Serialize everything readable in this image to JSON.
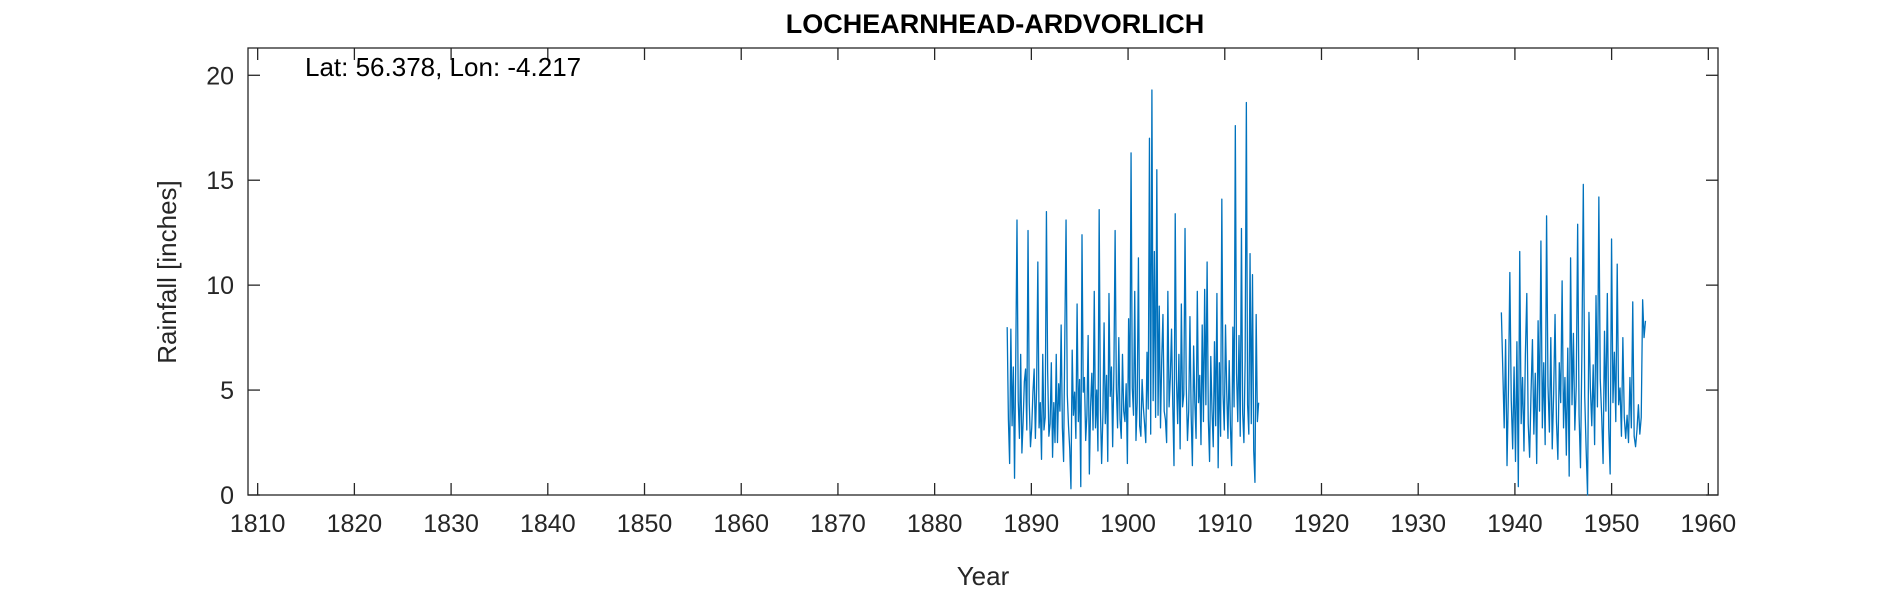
{
  "chart_data": {
    "type": "line",
    "title": "LOCHEARNHEAD-ARDVORLICH",
    "xlabel": "Year",
    "ylabel": "Rainfall [inches]",
    "annotation": "Lat: 56.378, Lon: -4.217",
    "xlim": [
      1809,
      1961
    ],
    "ylim": [
      0,
      21.3
    ],
    "xticks": [
      1810,
      1820,
      1830,
      1840,
      1850,
      1860,
      1870,
      1880,
      1890,
      1900,
      1910,
      1920,
      1930,
      1940,
      1950,
      1960
    ],
    "yticks": [
      0,
      5,
      10,
      15,
      20
    ],
    "grid": false,
    "series_color": "#0072bd",
    "segments": [
      {
        "x_start": 1887.5,
        "x_end": 1913.5,
        "values": [
          8.0,
          3.6,
          1.5,
          7.9,
          3.3,
          6.1,
          0.8,
          6.5,
          13.1,
          4.5,
          2.7,
          6.7,
          2.0,
          3.5,
          5.4,
          6.0,
          3.1,
          12.6,
          4.4,
          2.3,
          3.2,
          4.9,
          6.0,
          2.7,
          5.1,
          11.1,
          3.2,
          4.4,
          1.7,
          6.7,
          3.1,
          3.7,
          13.5,
          5.9,
          2.8,
          3.4,
          6.3,
          1.8,
          4.4,
          2.5,
          6.7,
          2.5,
          5.3,
          4.0,
          8.1,
          3.2,
          1.6,
          7.6,
          13.1,
          4.8,
          3.3,
          2.2,
          0.3,
          6.9,
          3.8,
          4.9,
          2.7,
          9.1,
          3.5,
          5.5,
          0.4,
          12.4,
          4.9,
          5.6,
          2.6,
          3.8,
          7.6,
          1.0,
          4.2,
          5.8,
          3.1,
          9.7,
          3.2,
          5.0,
          2.1,
          13.6,
          4.1,
          1.5,
          3.7,
          8.2,
          3.4,
          5.7,
          1.6,
          9.6,
          4.7,
          6.1,
          2.3,
          5.9,
          12.6,
          5.1,
          3.2,
          7.5,
          3.6,
          2.7,
          6.7,
          4.0,
          3.5,
          5.3,
          1.5,
          8.4,
          4.2,
          16.3,
          5.1,
          3.8,
          9.7,
          2.6,
          4.4,
          11.3,
          3.3,
          2.8,
          5.5,
          4.2,
          3.4,
          2.5,
          6.8,
          4.1,
          17.0,
          2.9,
          19.3,
          4.5,
          11.6,
          3.7,
          15.5,
          3.8,
          9.0,
          3.2,
          6.5,
          8.6,
          4.0,
          3.6,
          2.5,
          9.7,
          4.2,
          5.6,
          7.9,
          4.3,
          1.4,
          13.4,
          5.5,
          3.4,
          6.7,
          2.2,
          9.1,
          4.2,
          4.8,
          12.7,
          5.2,
          2.6,
          4.0,
          8.5,
          3.8,
          1.4,
          7.1,
          4.4,
          2.7,
          9.7,
          4.4,
          5.7,
          2.4,
          8.1,
          3.5,
          9.8,
          4.3,
          11.1,
          3.6,
          1.6,
          6.6,
          4.0,
          2.3,
          7.3,
          3.3,
          9.6,
          1.3,
          6.3,
          2.8,
          14.1,
          4.8,
          3.1,
          8.1,
          4.9,
          2.7,
          6.4,
          3.3,
          1.4,
          8.0,
          4.2,
          17.6,
          5.8,
          3.5,
          7.6,
          2.8,
          12.7,
          3.9,
          2.5,
          6.4,
          18.7,
          4.3,
          2.9,
          11.5,
          3.4,
          10.5,
          2.1,
          0.6,
          8.6,
          3.5,
          4.4
        ]
      },
      {
        "x_start": 1938.6,
        "x_end": 1953.5,
        "values": [
          8.7,
          6.0,
          3.2,
          7.4,
          1.4,
          5.0,
          10.6,
          4.5,
          2.2,
          6.1,
          1.6,
          7.3,
          0.4,
          11.6,
          3.4,
          5.6,
          2.1,
          6.7,
          9.6,
          3.4,
          1.8,
          4.9,
          7.4,
          2.9,
          5.8,
          1.5,
          8.3,
          4.0,
          12.1,
          3.2,
          6.3,
          2.4,
          13.3,
          5.2,
          3.0,
          7.5,
          2.2,
          4.8,
          8.6,
          3.5,
          1.7,
          6.3,
          4.4,
          10.2,
          3.2,
          5.6,
          1.9,
          7.0,
          0.9,
          11.3,
          4.3,
          7.7,
          3.1,
          5.2,
          12.9,
          3.8,
          1.3,
          6.8,
          14.8,
          4.7,
          2.2,
          0.0,
          8.7,
          5.1,
          3.3,
          6.2,
          2.4,
          9.5,
          4.2,
          14.2,
          5.5,
          3.8,
          1.5,
          7.8,
          4.0,
          9.6,
          3.2,
          1.0,
          12.2,
          4.4,
          6.8,
          3.5,
          11.0,
          4.3,
          5.1,
          2.8,
          7.5,
          3.7,
          2.7,
          3.8,
          2.5,
          5.6,
          3.2,
          9.2,
          2.8,
          2.3,
          3.1,
          4.3,
          2.9,
          3.7,
          9.3,
          7.5,
          8.3
        ]
      }
    ]
  }
}
